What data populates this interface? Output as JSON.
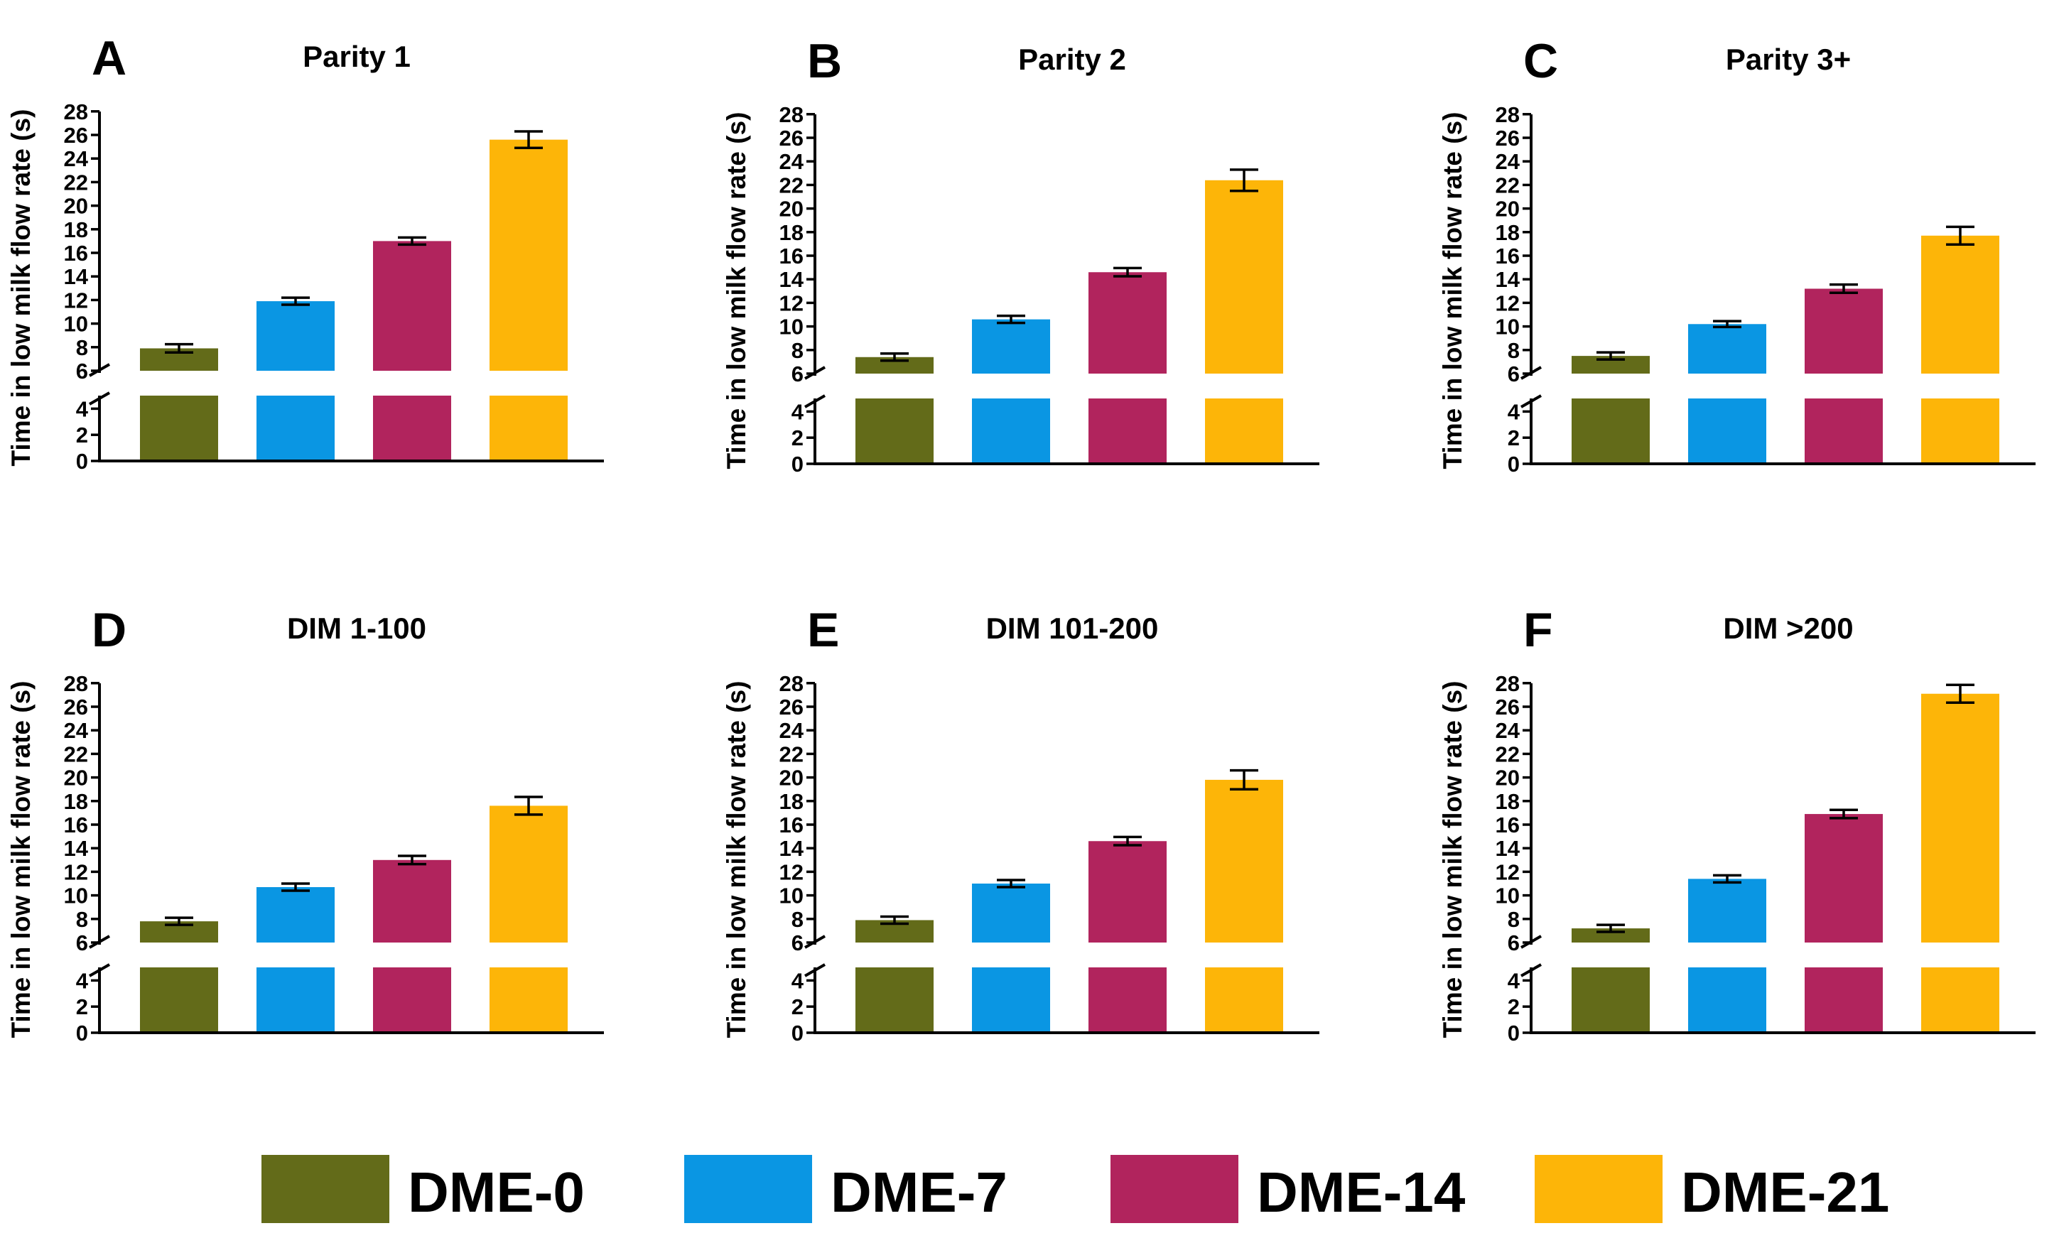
{
  "legend": [
    {
      "label": "DME-0",
      "color": "#636b19"
    },
    {
      "label": "DME-7",
      "color": "#0a96e3"
    },
    {
      "label": "DME-14",
      "color": "#b1245d"
    },
    {
      "label": "DME-21",
      "color": "#fdb508"
    }
  ],
  "chart_data": [
    {
      "type": "bar",
      "panel": "A",
      "title": "Parity 1",
      "categories": [
        "DME-0",
        "DME-7",
        "DME-14",
        "DME-21"
      ],
      "values": [
        7.9,
        11.9,
        17.0,
        25.6
      ],
      "errors": [
        0.35,
        0.3,
        0.3,
        0.7
      ],
      "ylabel": "Time in low milk flow rate (s)",
      "ylim": [
        0,
        28
      ],
      "axis_break": [
        5,
        6
      ],
      "yticks_lower": [
        "0",
        "2",
        "4"
      ],
      "yticks_upper": [
        "6",
        "8",
        "10",
        "12",
        "14",
        "16",
        "18",
        "20",
        "22",
        "24",
        "26",
        "28"
      ]
    },
    {
      "type": "bar",
      "panel": "B",
      "title": "Parity 2",
      "categories": [
        "DME-0",
        "DME-7",
        "DME-14",
        "DME-21"
      ],
      "values": [
        7.4,
        10.6,
        14.6,
        22.4
      ],
      "errors": [
        0.3,
        0.3,
        0.35,
        0.9
      ],
      "ylabel": "Time in low milk flow rate (s)",
      "ylim": [
        0,
        28
      ],
      "axis_break": [
        5,
        6
      ],
      "yticks_lower": [
        "0",
        "2",
        "4"
      ],
      "yticks_upper": [
        "6",
        "8",
        "10",
        "12",
        "14",
        "16",
        "18",
        "20",
        "22",
        "24",
        "26",
        "28"
      ]
    },
    {
      "type": "bar",
      "panel": "C",
      "title": "Parity 3+",
      "categories": [
        "DME-0",
        "DME-7",
        "DME-14",
        "DME-21"
      ],
      "values": [
        7.5,
        10.2,
        13.2,
        17.7
      ],
      "errors": [
        0.3,
        0.25,
        0.35,
        0.75
      ],
      "ylabel": "Time in low milk flow rate (s)",
      "ylim": [
        0,
        28
      ],
      "axis_break": [
        5,
        6
      ],
      "yticks_lower": [
        "0",
        "2",
        "4"
      ],
      "yticks_upper": [
        "6",
        "8",
        "10",
        "12",
        "14",
        "16",
        "18",
        "20",
        "22",
        "24",
        "26",
        "28"
      ]
    },
    {
      "type": "bar",
      "panel": "D",
      "title": "DIM 1-100",
      "categories": [
        "DME-0",
        "DME-7",
        "DME-14",
        "DME-21"
      ],
      "values": [
        7.8,
        10.7,
        13.0,
        17.6
      ],
      "errors": [
        0.3,
        0.3,
        0.35,
        0.75
      ],
      "ylabel": "Time in low milk flow rate (s)",
      "ylim": [
        0,
        28
      ],
      "axis_break": [
        5,
        6
      ],
      "yticks_lower": [
        "0",
        "2",
        "4"
      ],
      "yticks_upper": [
        "6",
        "8",
        "10",
        "12",
        "14",
        "16",
        "18",
        "20",
        "22",
        "24",
        "26",
        "28"
      ]
    },
    {
      "type": "bar",
      "panel": "E",
      "title": "DIM 101-200",
      "categories": [
        "DME-0",
        "DME-7",
        "DME-14",
        "DME-21"
      ],
      "values": [
        7.9,
        11.0,
        14.6,
        19.8
      ],
      "errors": [
        0.3,
        0.3,
        0.35,
        0.8
      ],
      "ylabel": "Time in low milk flow rate (s)",
      "ylim": [
        0,
        28
      ],
      "axis_break": [
        5,
        6
      ],
      "yticks_lower": [
        "0",
        "2",
        "4"
      ],
      "yticks_upper": [
        "6",
        "8",
        "10",
        "12",
        "14",
        "16",
        "18",
        "20",
        "22",
        "24",
        "26",
        "28"
      ]
    },
    {
      "type": "bar",
      "panel": "F",
      "title": "DIM >200",
      "categories": [
        "DME-0",
        "DME-7",
        "DME-14",
        "DME-21"
      ],
      "values": [
        7.2,
        11.4,
        16.9,
        27.1
      ],
      "errors": [
        0.3,
        0.3,
        0.35,
        0.75
      ],
      "ylabel": "Time in low milk flow rate (s)",
      "ylim": [
        0,
        28
      ],
      "axis_break": [
        5,
        6
      ],
      "yticks_lower": [
        "0",
        "2",
        "4"
      ],
      "yticks_upper": [
        "6",
        "8",
        "10",
        "12",
        "14",
        "16",
        "18",
        "20",
        "22",
        "24",
        "26",
        "28"
      ]
    }
  ]
}
